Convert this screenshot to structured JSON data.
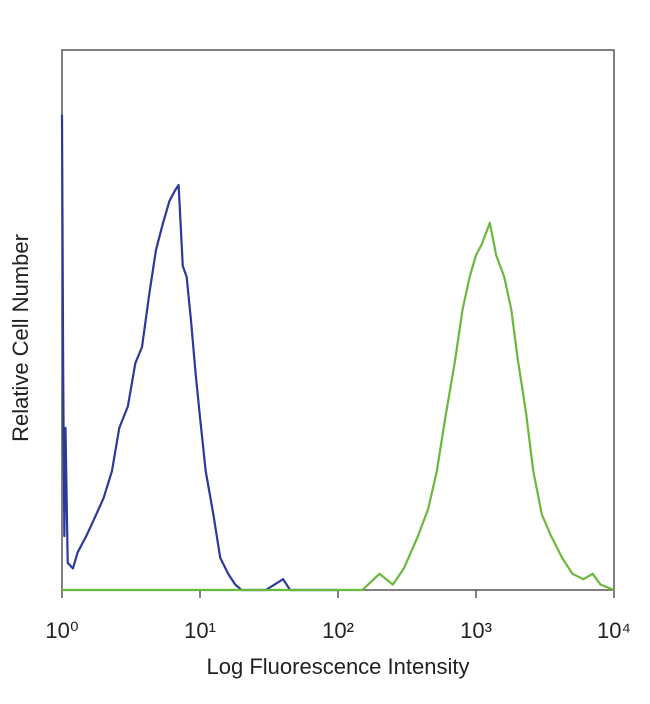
{
  "chart_data": {
    "type": "line",
    "xlabel": "Log Fluorescence Intensity",
    "ylabel": "Relative Cell Number",
    "xscale": "log",
    "xlim": [
      1,
      10000
    ],
    "ylim": [
      0,
      100
    ],
    "xticks": [
      {
        "value": 1,
        "label": "10⁰"
      },
      {
        "value": 10,
        "label": "10¹"
      },
      {
        "value": 100,
        "label": "10²"
      },
      {
        "value": 1000,
        "label": "10³"
      },
      {
        "value": 10000,
        "label": "10⁴"
      }
    ],
    "series": [
      {
        "color": "#2b3a9a",
        "x": [
          1.0,
          1.02,
          1.04,
          1.06,
          1.1,
          1.2,
          1.3,
          1.5,
          1.7,
          2.0,
          2.3,
          2.6,
          3.0,
          3.4,
          3.8,
          4.3,
          4.8,
          5.4,
          6.0,
          6.6,
          7.0,
          7.5,
          8.0,
          8.6,
          9.3,
          10,
          11,
          12.5,
          14,
          16,
          18,
          20,
          30,
          40,
          45,
          100
        ],
        "values": [
          88,
          40,
          10,
          30,
          5,
          4,
          7,
          10,
          13,
          17,
          22,
          30,
          34,
          42,
          45,
          55,
          63,
          68,
          72,
          74,
          75,
          60,
          58,
          50,
          40,
          32,
          22,
          14,
          6,
          3,
          1,
          0,
          0,
          2,
          0,
          0
        ]
      },
      {
        "color": "#6ab83c",
        "x": [
          1,
          150,
          200,
          250,
          300,
          380,
          450,
          520,
          600,
          700,
          800,
          900,
          1000,
          1100,
          1260,
          1400,
          1600,
          1800,
          2000,
          2300,
          2600,
          3000,
          3500,
          4200,
          5000,
          6000,
          7000,
          8000,
          10000
        ],
        "values": [
          0,
          0,
          3,
          1,
          4,
          10,
          15,
          22,
          32,
          42,
          52,
          58,
          62,
          64,
          68,
          62,
          58,
          52,
          43,
          33,
          22,
          14,
          10,
          6,
          3,
          2,
          3,
          1,
          0
        ]
      }
    ]
  }
}
